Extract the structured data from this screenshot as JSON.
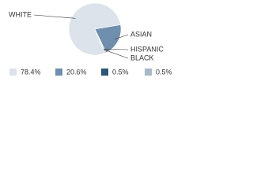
{
  "chart_data": {
    "type": "pie",
    "categories": [
      "WHITE",
      "ASIAN",
      "HISPANIC",
      "BLACK"
    ],
    "values": [
      78.4,
      20.6,
      0.5,
      0.5
    ],
    "value_labels": [
      "78.4%",
      "20.6%",
      "0.5%",
      "0.5%"
    ],
    "colors": [
      "#dce3eb",
      "#6f8fae",
      "#2e5676",
      "#a9b9ca"
    ]
  }
}
